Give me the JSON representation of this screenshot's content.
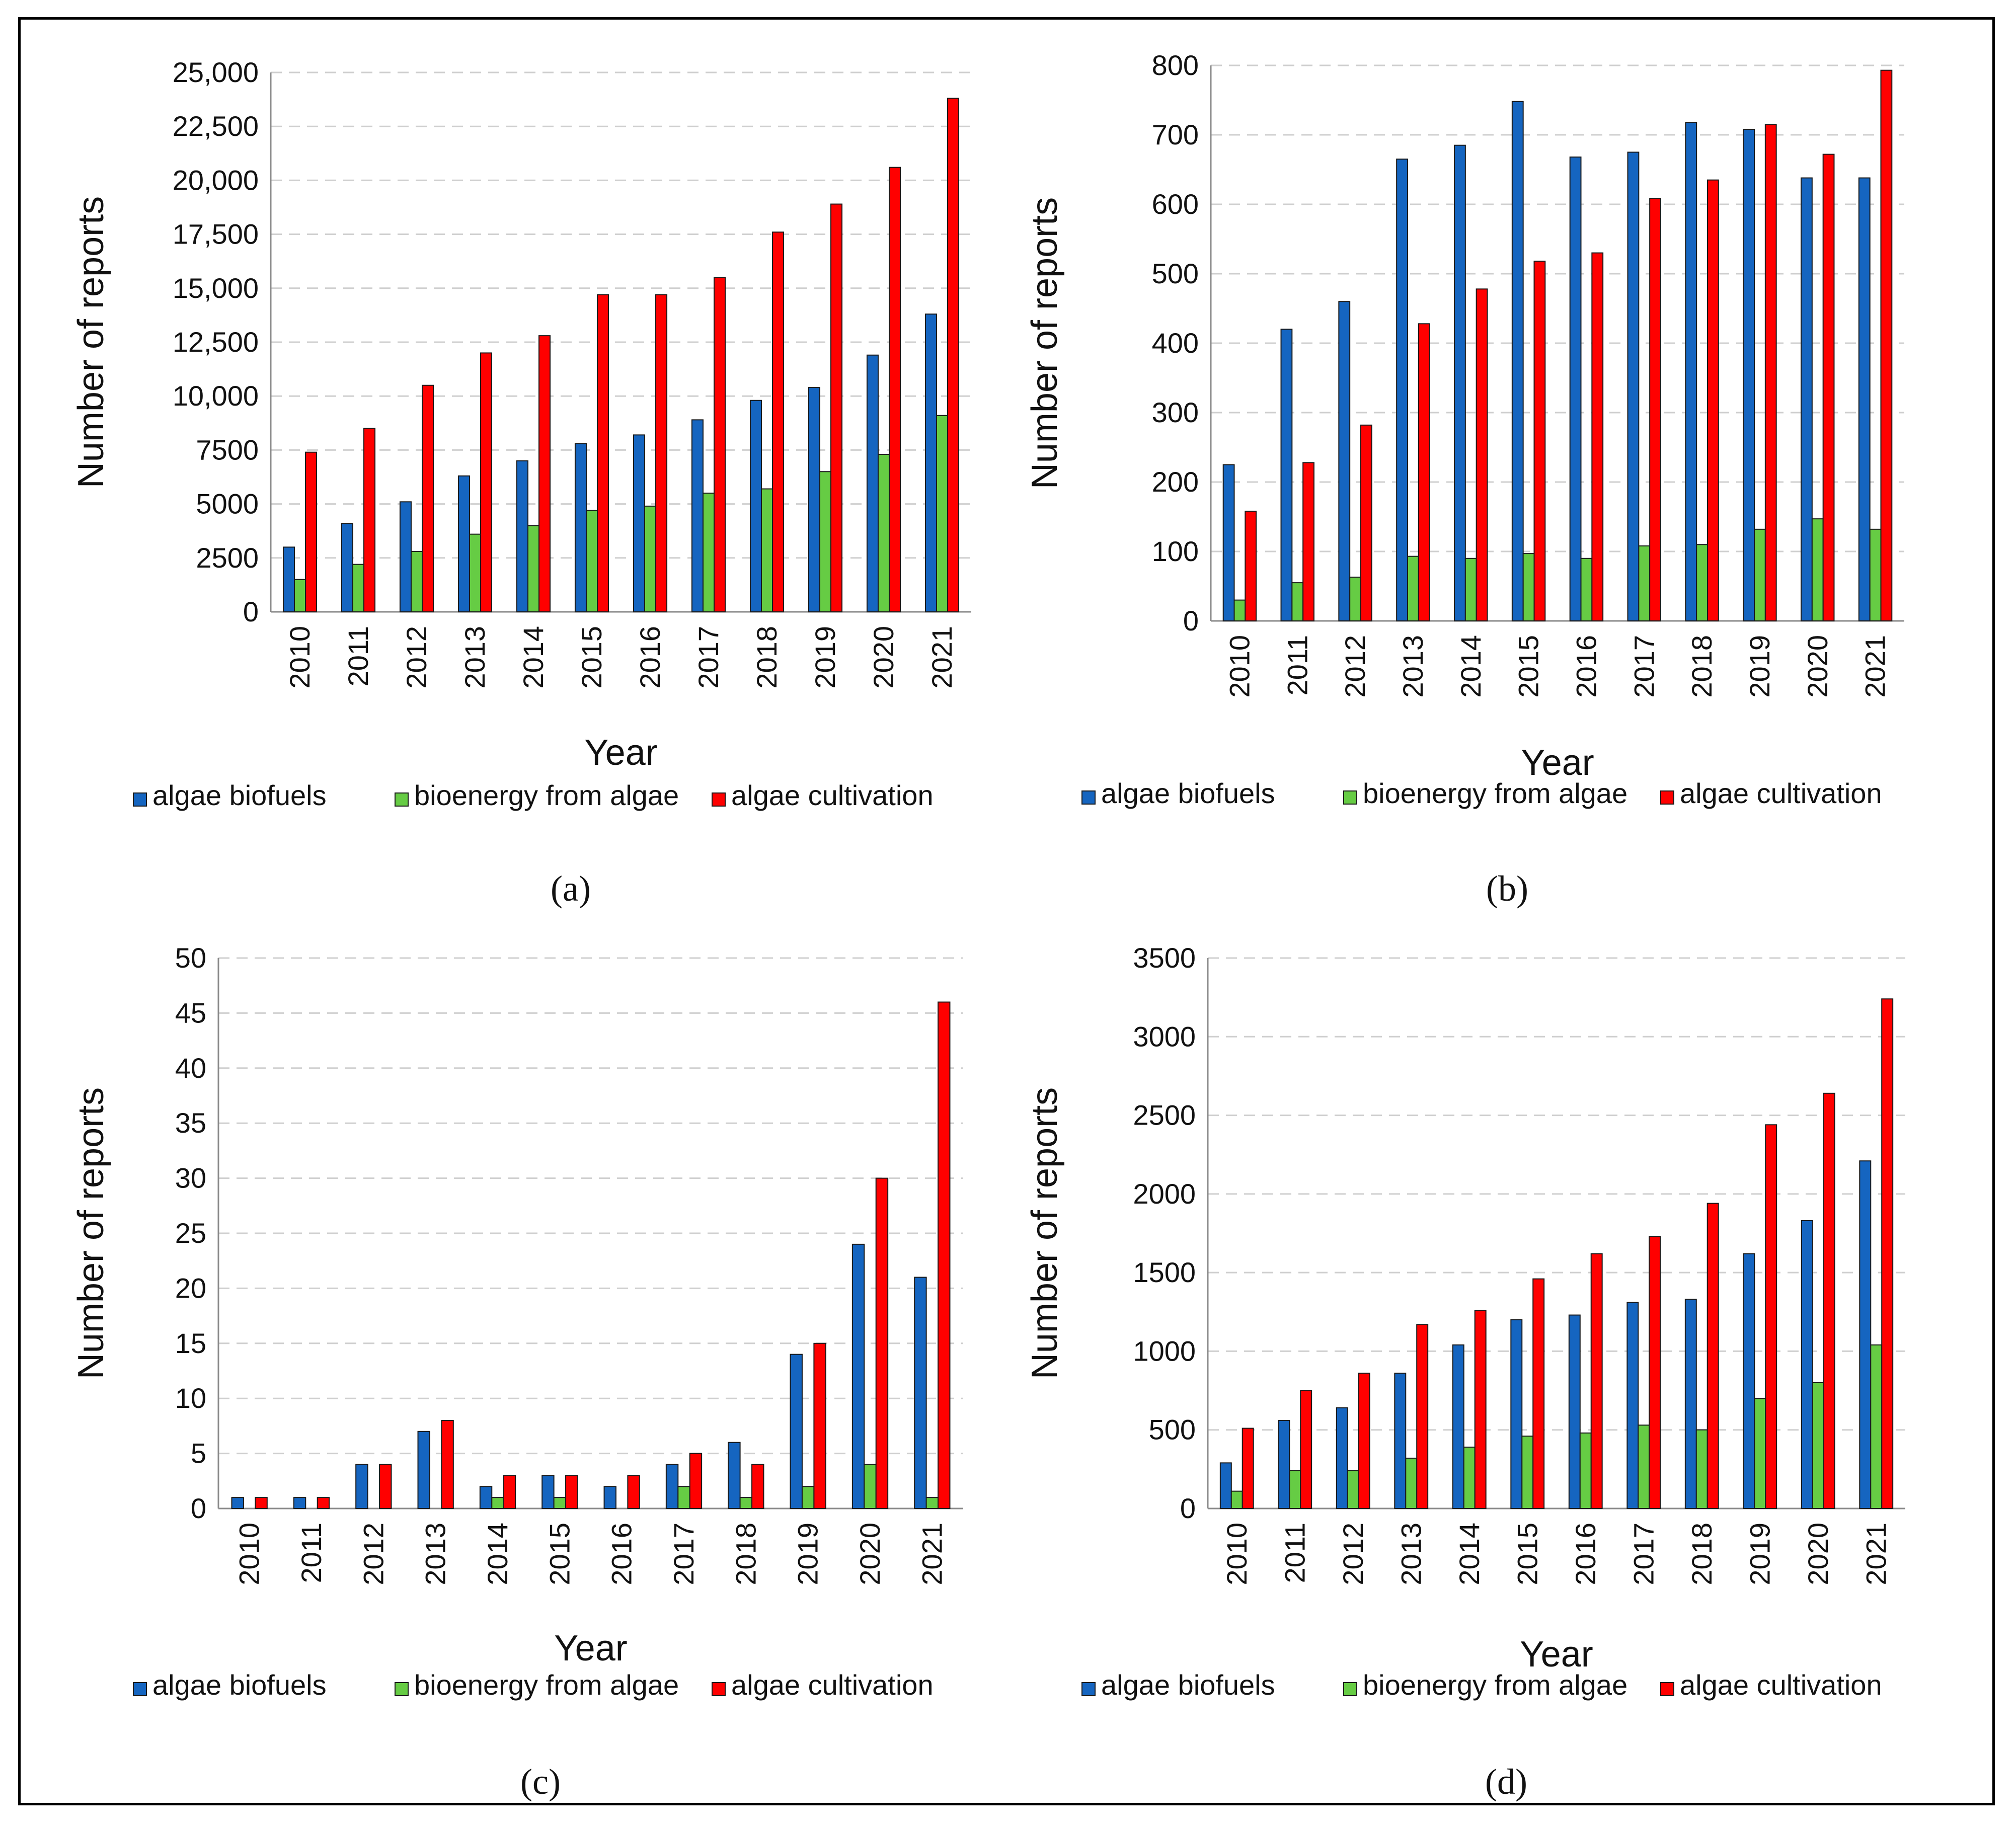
{
  "legend_labels": [
    "algae biofuels",
    "bioenergy from algae",
    "algae cultivation"
  ],
  "series_colors": [
    "#1565C0",
    "#66CC44",
    "#FF0000"
  ],
  "chart_data": [
    {
      "type": "bar",
      "caption": "(a)",
      "xlabel": "Year",
      "ylabel": "Number of reports",
      "ylim": [
        0,
        25000
      ],
      "ytick_values": [
        0,
        2500,
        5000,
        7500,
        10000,
        12500,
        15000,
        17500,
        20000,
        22500,
        25000
      ],
      "ytick_labels": [
        "0",
        "2500",
        "5000",
        "7500",
        "10,000",
        "12,500",
        "15,000",
        "17,500",
        "20,000",
        "22,500",
        "25,000"
      ],
      "categories": [
        "2010",
        "2011",
        "2012",
        "2013",
        "2014",
        "2015",
        "2016",
        "2017",
        "2018",
        "2019",
        "2020",
        "2021"
      ],
      "series": [
        {
          "name": "algae biofuels",
          "values": [
            3000,
            4100,
            5100,
            6300,
            7000,
            7800,
            8200,
            8900,
            9800,
            10400,
            11900,
            13800
          ]
        },
        {
          "name": "bioenergy from algae",
          "values": [
            1500,
            2200,
            2800,
            3600,
            4000,
            4700,
            4900,
            5500,
            5700,
            6500,
            7300,
            9100
          ]
        },
        {
          "name": "algae cultivation",
          "values": [
            7400,
            8500,
            10500,
            12000,
            12800,
            14700,
            14700,
            15500,
            17600,
            18900,
            20600,
            23800
          ]
        }
      ]
    },
    {
      "type": "bar",
      "caption": "(b)",
      "xlabel": "Year",
      "ylabel": "Number of reports",
      "ylim": [
        0,
        800
      ],
      "ytick_values": [
        0,
        100,
        200,
        300,
        400,
        500,
        600,
        700,
        800
      ],
      "ytick_labels": [
        "0",
        "100",
        "200",
        "300",
        "400",
        "500",
        "600",
        "700",
        "800"
      ],
      "categories": [
        "2010",
        "2011",
        "2012",
        "2013",
        "2014",
        "2015",
        "2016",
        "2017",
        "2018",
        "2019",
        "2020",
        "2021"
      ],
      "series": [
        {
          "name": "algae biofuels",
          "values": [
            225,
            420,
            460,
            665,
            685,
            748,
            668,
            675,
            718,
            708,
            638,
            638
          ]
        },
        {
          "name": "bioenergy from algae",
          "values": [
            30,
            55,
            63,
            93,
            90,
            97,
            90,
            108,
            110,
            132,
            147,
            132
          ]
        },
        {
          "name": "algae cultivation",
          "values": [
            158,
            228,
            282,
            428,
            478,
            518,
            530,
            608,
            635,
            715,
            672,
            793
          ]
        }
      ]
    },
    {
      "type": "bar",
      "caption": "(c)",
      "xlabel": "Year",
      "ylabel": "Number of reports",
      "ylim": [
        0,
        50
      ],
      "ytick_values": [
        0,
        5,
        10,
        15,
        20,
        25,
        30,
        35,
        40,
        45,
        50
      ],
      "ytick_labels": [
        "0",
        "5",
        "10",
        "15",
        "20",
        "25",
        "30",
        "35",
        "40",
        "45",
        "50"
      ],
      "categories": [
        "2010",
        "2011",
        "2012",
        "2013",
        "2014",
        "2015",
        "2016",
        "2017",
        "2018",
        "2019",
        "2020",
        "2021"
      ],
      "series": [
        {
          "name": "algae biofuels",
          "values": [
            1,
            1,
            4,
            7,
            2,
            3,
            2,
            4,
            6,
            14,
            24,
            21
          ]
        },
        {
          "name": "bioenergy from algae",
          "values": [
            0,
            0,
            0,
            0,
            1,
            1,
            0,
            2,
            1,
            2,
            4,
            1
          ]
        },
        {
          "name": "algae cultivation",
          "values": [
            1,
            1,
            4,
            8,
            3,
            3,
            3,
            5,
            4,
            15,
            30,
            46
          ]
        }
      ]
    },
    {
      "type": "bar",
      "caption": "(d)",
      "xlabel": "Year",
      "ylabel": "Number of reports",
      "ylim": [
        0,
        3500
      ],
      "ytick_values": [
        0,
        500,
        1000,
        1500,
        2000,
        2500,
        3000,
        3500
      ],
      "ytick_labels": [
        "0",
        "500",
        "1000",
        "1500",
        "2000",
        "2500",
        "3000",
        "3500"
      ],
      "categories": [
        "2010",
        "2011",
        "2012",
        "2013",
        "2014",
        "2015",
        "2016",
        "2017",
        "2018",
        "2019",
        "2020",
        "2021"
      ],
      "series": [
        {
          "name": "algae biofuels",
          "values": [
            290,
            560,
            640,
            860,
            1040,
            1200,
            1230,
            1310,
            1330,
            1620,
            1830,
            2210
          ]
        },
        {
          "name": "bioenergy from algae",
          "values": [
            110,
            240,
            240,
            320,
            390,
            460,
            480,
            530,
            500,
            700,
            800,
            1040
          ]
        },
        {
          "name": "algae cultivation",
          "values": [
            510,
            750,
            860,
            1170,
            1260,
            1460,
            1620,
            1730,
            1940,
            2440,
            2640,
            3240
          ]
        }
      ]
    }
  ]
}
